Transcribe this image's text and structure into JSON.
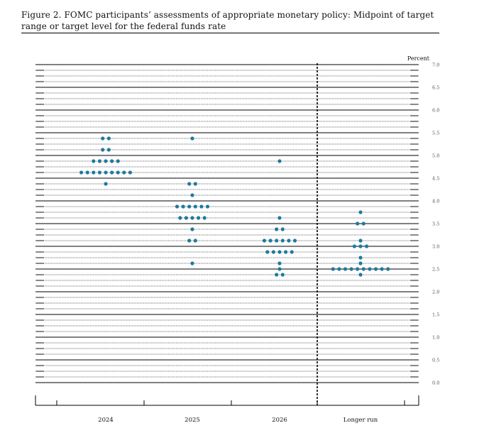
{
  "title": "Figure 2.  FOMC participants’ assessments of appropriate monetary policy: Midpoint of target range or target level for the federal funds rate",
  "chart_data": {
    "type": "scatter",
    "title": "Figure 2.  FOMC participants’ assessments of appropriate monetary policy: Midpoint of target range or target level for the federal funds rate",
    "ylabel": "Percent",
    "ylim": [
      0,
      7
    ],
    "yticks": [
      "7.0",
      "6.5",
      "6.0",
      "5.5",
      "5.0",
      "4.5",
      "4.0",
      "3.5",
      "3.0",
      "2.5",
      "2.0",
      "1.5",
      "1.0",
      "0.5",
      "0.0"
    ],
    "categories": [
      "2024",
      "2025",
      "2026",
      "Longer run"
    ],
    "dot_color": "#1f7a9c",
    "grid": true,
    "longer_run_separated_by_dashed_line": true,
    "series": [
      {
        "category": "2024",
        "points": [
          {
            "y": 5.375,
            "count": 2
          },
          {
            "y": 5.125,
            "count": 2
          },
          {
            "y": 4.875,
            "count": 5
          },
          {
            "y": 4.625,
            "count": 9
          },
          {
            "y": 4.375,
            "count": 1
          }
        ]
      },
      {
        "category": "2025",
        "points": [
          {
            "y": 5.375,
            "count": 1
          },
          {
            "y": 4.375,
            "count": 2
          },
          {
            "y": 4.125,
            "count": 1
          },
          {
            "y": 3.875,
            "count": 6
          },
          {
            "y": 3.625,
            "count": 5
          },
          {
            "y": 3.375,
            "count": 1
          },
          {
            "y": 3.125,
            "count": 2
          },
          {
            "y": 2.625,
            "count": 1
          }
        ]
      },
      {
        "category": "2026",
        "points": [
          {
            "y": 4.875,
            "count": 1
          },
          {
            "y": 3.625,
            "count": 1
          },
          {
            "y": 3.375,
            "count": 2
          },
          {
            "y": 3.125,
            "count": 6
          },
          {
            "y": 2.875,
            "count": 5
          },
          {
            "y": 2.625,
            "count": 1
          },
          {
            "y": 2.5,
            "count": 1
          },
          {
            "y": 2.375,
            "count": 2
          }
        ]
      },
      {
        "category": "Longer run",
        "points": [
          {
            "y": 3.75,
            "count": 1
          },
          {
            "y": 3.5,
            "count": 2
          },
          {
            "y": 3.125,
            "count": 1
          },
          {
            "y": 3.0,
            "count": 3
          },
          {
            "y": 2.75,
            "count": 1
          },
          {
            "y": 2.625,
            "count": 1
          },
          {
            "y": 2.5,
            "count": 10
          },
          {
            "y": 2.375,
            "count": 1
          }
        ]
      }
    ]
  }
}
